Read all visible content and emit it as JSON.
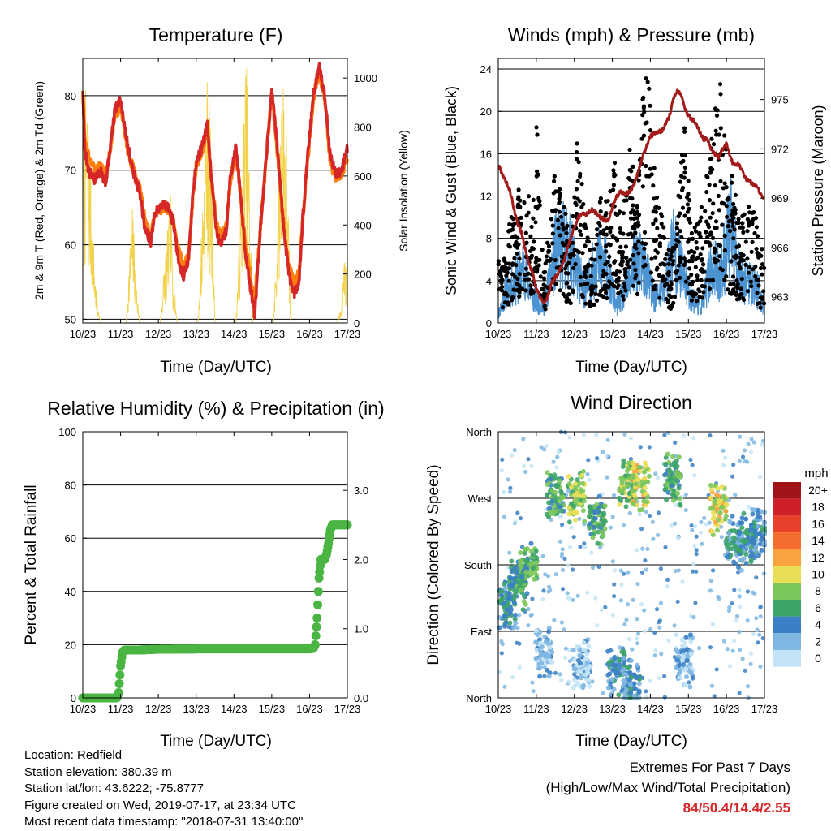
{
  "panels": {
    "temperature": {
      "title": "Temperature (F)",
      "ylabel_left": "2m & 9m T (Red, Orange) & 2m Td (Green)",
      "ylabel_right": "Solar Insolation (Yellow)",
      "xlabel": "Time (Day/UTC)"
    },
    "winds": {
      "title": "Winds (mph) & Pressure (mb)",
      "ylabel_left": "Sonic Wind & Gust (Blue, Black)",
      "ylabel_right": "Station Pressure (Maroon)",
      "xlabel": "Time (Day/UTC)"
    },
    "humidity": {
      "title": "Relative Humidity (%) & Precipitation (in)",
      "ylabel_left": "Percent & Total Rainfall",
      "xlabel": "Time (Day/UTC)"
    },
    "direction": {
      "title": "Wind Direction",
      "ylabel_left": "Direction (Colored By Speed)",
      "xlabel": "Time (Day/UTC)",
      "legend_title": "mph"
    }
  },
  "info": {
    "location": "Location: Redfield",
    "elevation": "Station elevation: 380.39 m",
    "latlon": "Station lat/lon: 43.6222; -75.8777",
    "created": "Figure created on Wed, 2019-07-17, at 23:34 UTC",
    "recent": "Most recent data timestamp: \"2018-07-31 13:40:00\""
  },
  "extremes": {
    "title": "Extremes For Past 7 Days",
    "subtitle": "(High/Low/Max Wind/Total Precipitation)",
    "values": "84/50.4/14.4/2.55"
  },
  "colors": {
    "temp_2m": "#d62728",
    "temp_9m": "#ff7f0e",
    "solar": "#f2d24b",
    "wind": "#4c93d2",
    "gust": "#000000",
    "pressure": "#a31a1a",
    "rh": "#4bb543"
  },
  "chart_data": [
    {
      "type": "line",
      "id": "temperature",
      "x_ticks": [
        "10/23",
        "11/23",
        "12/23",
        "13/23",
        "14/23",
        "15/23",
        "16/23",
        "17/23"
      ],
      "xlim": [
        0,
        7
      ],
      "ylim": [
        49.5,
        85
      ],
      "y_ticks": [
        50,
        60,
        70,
        80
      ],
      "y2lim": [
        0,
        1080
      ],
      "y2_ticks": [
        0,
        200,
        400,
        600,
        800,
        1000
      ],
      "grid": "horizontal",
      "series": [
        {
          "role": "2m T",
          "x": [
            0,
            0.05,
            0.15,
            0.3,
            0.4,
            0.5,
            0.6,
            0.75,
            0.85,
            1.0,
            1.2,
            1.4,
            1.5,
            1.65,
            1.8,
            1.9,
            2.1,
            2.25,
            2.4,
            2.5,
            2.65,
            2.8,
            2.9,
            3.0,
            3.15,
            3.3,
            3.4,
            3.55,
            3.65,
            3.8,
            3.9,
            4.05,
            4.15,
            4.3,
            4.4,
            4.55,
            4.7,
            4.9,
            5.0,
            5.15,
            5.3,
            5.45,
            5.6,
            5.72,
            5.8,
            5.95,
            6.1,
            6.25,
            6.4,
            6.55,
            6.7,
            6.85,
            7.0
          ],
          "y": [
            81,
            73,
            70,
            68.5,
            69.5,
            70,
            68,
            74,
            78,
            79.5,
            73,
            68.5,
            67.5,
            62,
            60.5,
            64,
            65.5,
            65,
            63,
            59,
            55.5,
            58,
            66,
            71,
            73,
            76,
            69,
            61.5,
            60,
            62,
            69,
            73,
            68,
            59,
            55.5,
            50.5,
            62,
            74.5,
            81,
            73,
            63,
            56,
            53.5,
            55,
            62,
            72,
            80,
            84,
            80,
            72,
            69.5,
            70,
            73
          ]
        },
        {
          "role": "9m T",
          "x": [
            0,
            0.05,
            0.15,
            0.3,
            0.4,
            0.5,
            0.6,
            0.75,
            0.85,
            1.0,
            1.2,
            1.4,
            1.5,
            1.65,
            1.8,
            1.9,
            2.1,
            2.25,
            2.4,
            2.5,
            2.65,
            2.8,
            2.9,
            3.0,
            3.15,
            3.3,
            3.4,
            3.55,
            3.65,
            3.8,
            3.9,
            4.05,
            4.15,
            4.3,
            4.4,
            4.55,
            4.7,
            4.9,
            5.0,
            5.15,
            5.3,
            5.45,
            5.6,
            5.72,
            5.8,
            5.95,
            6.1,
            6.25,
            6.4,
            6.55,
            6.7,
            6.85,
            7.0
          ],
          "y": [
            80.5,
            74,
            72,
            70,
            70.5,
            70.5,
            69,
            73.5,
            77.5,
            78.5,
            72.5,
            69,
            68,
            63,
            61,
            64,
            65,
            64.5,
            63.5,
            60,
            57,
            58.5,
            65.5,
            70.5,
            72.5,
            75.5,
            69,
            62.5,
            61,
            62.5,
            68.5,
            72.5,
            68,
            60,
            57,
            52.5,
            62.5,
            74,
            80.5,
            72.5,
            63.5,
            57,
            55,
            56,
            62,
            71.5,
            79.5,
            83.5,
            79.5,
            71,
            69,
            69.5,
            72
          ]
        },
        {
          "role": "Solar insolation",
          "x": [
            0.02,
            0.1,
            0.22,
            0.32,
            0.42,
            0.5,
            1.05,
            1.15,
            1.25,
            1.32,
            1.4,
            1.5,
            2.05,
            2.15,
            2.25,
            2.32,
            2.4,
            2.5,
            3.05,
            3.15,
            3.25,
            3.32,
            3.4,
            3.5,
            4.05,
            4.15,
            4.25,
            4.32,
            4.4,
            4.5,
            5.05,
            5.15,
            5.25,
            5.32,
            5.4,
            5.5,
            6.05,
            6.15,
            6.22,
            6.3,
            6.38,
            6.46,
            6.5,
            6.56,
            6.62,
            6.68,
            6.72,
            6.8,
            6.86,
            6.93,
            7.0
          ],
          "y": [
            700,
            950,
            550,
            200,
            30,
            0,
            0,
            0,
            300,
            450,
            200,
            0,
            0,
            220,
            360,
            500,
            180,
            0,
            0,
            400,
            800,
            1020,
            600,
            0,
            0,
            350,
            780,
            1020,
            650,
            0,
            0,
            420,
            900,
            1020,
            700,
            0,
            0,
            0,
            0,
            0,
            0,
            0,
            0,
            0,
            0,
            0,
            0,
            40,
            120,
            300,
            150
          ]
        }
      ]
    },
    {
      "type": "line",
      "id": "winds_pressure",
      "x_ticks": [
        "10/23",
        "11/23",
        "12/23",
        "13/23",
        "14/23",
        "15/23",
        "16/23",
        "17/23"
      ],
      "xlim": [
        0,
        7
      ],
      "ylim": [
        0,
        25
      ],
      "y_ticks": [
        0,
        4,
        8,
        12,
        16,
        20,
        24
      ],
      "y2lim": [
        961.4,
        977.5
      ],
      "y2_ticks": [
        963,
        966,
        969,
        972,
        975
      ],
      "grid": "horizontal",
      "series": [
        {
          "role": "Sonic wind",
          "x": [
            0,
            0.2,
            0.45,
            0.7,
            0.9,
            1.2,
            1.5,
            1.8,
            2.1,
            2.3,
            2.6,
            2.85,
            3.1,
            3.35,
            3.6,
            3.85,
            4.1,
            4.35,
            4.6,
            4.85,
            5.1,
            5.35,
            5.6,
            5.85,
            6.1,
            6.35,
            6.6,
            6.85,
            7.0
          ],
          "y": [
            1,
            4,
            5,
            7,
            3,
            2,
            9,
            10,
            6,
            4,
            8,
            7,
            2,
            4,
            8,
            7,
            3,
            4,
            10,
            6,
            3,
            2,
            7,
            6,
            12,
            6,
            5,
            4,
            2
          ]
        },
        {
          "role": "Gust",
          "x": [
            0.1,
            0.3,
            0.5,
            0.7,
            0.9,
            1.0,
            1.2,
            1.35,
            1.55,
            1.75,
            1.9,
            2.05,
            2.3,
            2.5,
            2.7,
            2.9,
            3.05,
            3.25,
            3.45,
            3.65,
            3.8,
            3.95,
            4.15,
            4.35,
            4.55,
            4.7,
            4.9,
            5.1,
            5.3,
            5.5,
            5.7,
            5.85,
            6.05,
            6.2,
            6.35,
            6.55,
            6.75,
            6.9
          ],
          "y": [
            6,
            9,
            12,
            14,
            9,
            20,
            5,
            10,
            15,
            11,
            7,
            18,
            9,
            6,
            13,
            11,
            15,
            8,
            17,
            11,
            22,
            23,
            12,
            9,
            6,
            10,
            18,
            8,
            10,
            14,
            21,
            22,
            14,
            13,
            9,
            11,
            10,
            7
          ]
        },
        {
          "role": "Station pressure",
          "x": [
            0,
            0.1,
            0.2,
            0.3,
            0.4,
            0.5,
            0.6,
            0.7,
            0.8,
            0.9,
            1.0,
            1.1,
            1.2,
            1.3,
            1.4,
            1.5,
            1.6,
            1.7,
            1.8,
            1.9,
            2.0,
            2.1,
            2.2,
            2.3,
            2.4,
            2.5,
            2.6,
            2.7,
            2.8,
            2.9,
            3.0,
            3.1,
            3.2,
            3.3,
            3.4,
            3.5,
            3.6,
            3.7,
            3.8,
            3.9,
            4.0,
            4.1,
            4.2,
            4.3,
            4.4,
            4.5,
            4.6,
            4.7,
            4.8,
            4.9,
            5.0,
            5.1,
            5.2,
            5.3,
            5.4,
            5.5,
            5.6,
            5.7,
            5.8,
            5.9,
            6.0,
            6.1,
            6.2,
            6.3,
            6.4,
            6.5,
            6.6,
            6.7,
            6.8,
            6.9,
            7.0
          ],
          "y": [
            971,
            970.5,
            970,
            969.5,
            968.5,
            967.5,
            967,
            966,
            965,
            964.5,
            963.5,
            963,
            962.6,
            963,
            963.8,
            964.2,
            964.5,
            965,
            965.8,
            966.5,
            967.2,
            967.8,
            968,
            968,
            968.2,
            968.3,
            968,
            967.8,
            967.7,
            967.6,
            968.5,
            969,
            969.4,
            969.3,
            969.3,
            969.5,
            970,
            970.8,
            971.5,
            972.2,
            972.7,
            973,
            973,
            973.1,
            973.5,
            974,
            975,
            975.5,
            975.3,
            974.5,
            974,
            973.8,
            973.5,
            973,
            972.6,
            972.6,
            972,
            971.7,
            971.5,
            972,
            972.3,
            971.5,
            971,
            971.1,
            970.8,
            970.2,
            970.1,
            969.8,
            969.7,
            969.2,
            968.9
          ]
        }
      ]
    },
    {
      "type": "line",
      "id": "humidity_precip",
      "x_ticks": [
        "10/23",
        "11/23",
        "12/23",
        "13/23",
        "14/23",
        "15/23",
        "16/23",
        "17/23"
      ],
      "xlim": [
        0,
        7
      ],
      "ylim": [
        0,
        100
      ],
      "y_ticks": [
        0,
        20,
        40,
        60,
        80,
        100
      ],
      "y2_ticks": [
        "0.0",
        "1.0",
        "2.0",
        "3.0"
      ],
      "y2_per_unit": 26,
      "grid": "horizontal",
      "series": [
        {
          "role": "Total rainfall",
          "x": [
            0,
            0.5,
            0.9,
            0.95,
            1.0,
            1.05,
            1.1,
            1.5,
            2.0,
            3.0,
            4.0,
            5.0,
            6.0,
            6.1,
            6.15,
            6.2,
            6.25,
            6.3,
            6.4,
            6.45,
            6.5,
            6.55,
            6.6,
            6.7,
            6.8,
            6.9,
            7.0
          ],
          "y": [
            0,
            0,
            0,
            2,
            12,
            17,
            18,
            18,
            18.3,
            18.4,
            18.4,
            18.4,
            18.4,
            18.6,
            20,
            30,
            45,
            52,
            52,
            54,
            58,
            63,
            65,
            65,
            65,
            65,
            65
          ]
        }
      ]
    },
    {
      "type": "scatter",
      "id": "wind_direction",
      "x_ticks": [
        "10/23",
        "11/23",
        "12/23",
        "13/23",
        "14/23",
        "15/23",
        "16/23",
        "17/23"
      ],
      "xlim": [
        0,
        7
      ],
      "ylim": [
        0,
        360
      ],
      "y_tick_labels": [
        "North",
        "East",
        "South",
        "West",
        "North"
      ],
      "y_tick_values": [
        0,
        90,
        180,
        270,
        360
      ],
      "grid": "horizontal",
      "legend": {
        "title": "mph",
        "labels": [
          "20+",
          "18",
          "16",
          "14",
          "12",
          "10",
          "8",
          "6",
          "4",
          "2",
          "0"
        ],
        "colors": [
          "#a01418",
          "#cf2027",
          "#e8402a",
          "#f46d2e",
          "#f9a23f",
          "#e9df56",
          "#7cc75a",
          "#3da469",
          "#3b7fc4",
          "#7fb7e2",
          "#c2e4f6"
        ],
        "placement": "right"
      },
      "clusters": [
        {
          "x": 0.25,
          "y": 125,
          "speed": 5
        },
        {
          "x": 0.5,
          "y": 155,
          "speed": 6
        },
        {
          "x": 0.8,
          "y": 175,
          "speed": 7
        },
        {
          "x": 1.5,
          "y": 275,
          "speed": 7
        },
        {
          "x": 2.05,
          "y": 270,
          "speed": 9
        },
        {
          "x": 2.6,
          "y": 240,
          "speed": 7
        },
        {
          "x": 3.4,
          "y": 290,
          "speed": 8
        },
        {
          "x": 3.75,
          "y": 290,
          "speed": 10
        },
        {
          "x": 4.6,
          "y": 295,
          "speed": 7
        },
        {
          "x": 5.8,
          "y": 255,
          "speed": 10
        },
        {
          "x": 6.2,
          "y": 210,
          "speed": 5
        },
        {
          "x": 6.55,
          "y": 215,
          "speed": 5
        },
        {
          "x": 6.85,
          "y": 225,
          "speed": 4
        },
        {
          "x": 1.2,
          "y": 60,
          "speed": 2
        },
        {
          "x": 2.2,
          "y": 45,
          "speed": 2
        },
        {
          "x": 3.1,
          "y": 40,
          "speed": 4
        },
        {
          "x": 3.5,
          "y": 20,
          "speed": 4
        },
        {
          "x": 4.9,
          "y": 50,
          "speed": 2
        }
      ]
    }
  ]
}
